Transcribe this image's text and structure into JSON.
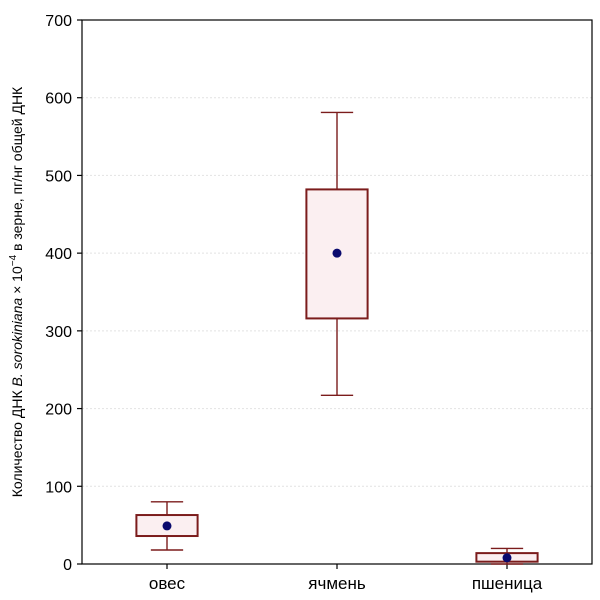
{
  "chart_data": {
    "type": "boxplot",
    "ylabel": {
      "prefix": "Количество ДНК ",
      "italic": "B. sorokiniana",
      "mid": " × 10",
      "sup": "−4",
      "suffix": " в зерне, пг/нг общей ДНК"
    },
    "xlabel": "",
    "ylim": [
      0,
      700
    ],
    "yticks": [
      0,
      100,
      200,
      300,
      400,
      500,
      600,
      700
    ],
    "grid": true,
    "categories": [
      "овес",
      "ячмень",
      "пшеница"
    ],
    "boxes": [
      {
        "category": "овес",
        "whisker_low": 18,
        "q1": 36,
        "mean": 49,
        "q3": 63,
        "whisker_high": 80
      },
      {
        "category": "ячмень",
        "whisker_low": 217,
        "q1": 316,
        "mean": 400,
        "q3": 482,
        "whisker_high": 581
      },
      {
        "category": "пшеница",
        "whisker_low": 0,
        "q1": 3,
        "mean": 8,
        "q3": 14,
        "whisker_high": 20
      }
    ],
    "colors": {
      "box_edge": "#7b1c1c",
      "box_fill": "#fbeff1",
      "mean_marker": "#0a0a6e",
      "grid": "#e2e2e2"
    }
  }
}
